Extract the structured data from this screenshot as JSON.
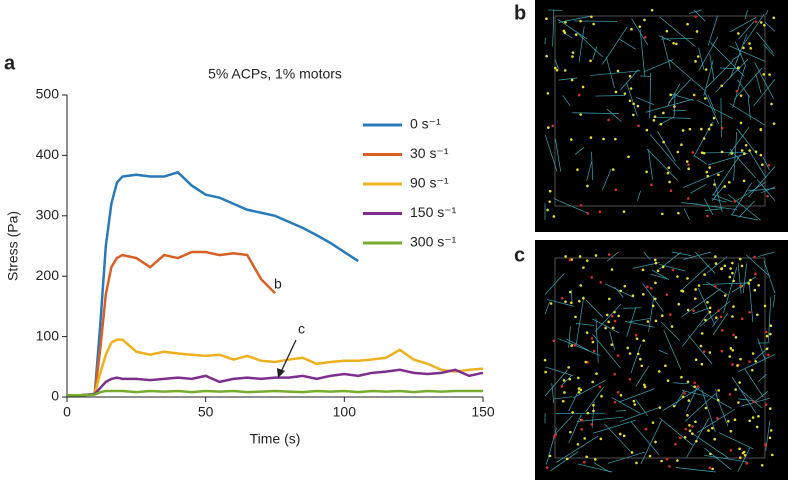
{
  "panel_labels": [
    "a",
    "b",
    "c"
  ],
  "chart_data": {
    "type": "line",
    "title": "5% ACPs, 1% motors",
    "x_label": "Time (s)",
    "y_label": "Stress (Pa)",
    "annotations": [
      "b",
      "c"
    ],
    "x": [
      0,
      5,
      10,
      12,
      14,
      16,
      18,
      20,
      25,
      30,
      35,
      40,
      45,
      50,
      55,
      60,
      65,
      70,
      75,
      80,
      85,
      90,
      95,
      100,
      105,
      110,
      115,
      120,
      125,
      130,
      135,
      140,
      145,
      150
    ],
    "series": [
      {
        "name": "0 s⁻¹",
        "color": "#2a7ab9",
        "values": [
          3,
          3,
          5,
          120,
          250,
          320,
          355,
          365,
          368,
          365,
          365,
          372,
          350,
          335,
          330,
          320,
          310,
          305,
          300,
          290,
          280,
          268,
          255,
          240,
          225,
          null,
          null,
          null,
          null,
          null,
          null,
          null,
          null,
          null
        ]
      },
      {
        "name": "30 s⁻¹",
        "color": "#d95f26",
        "values": [
          3,
          3,
          5,
          80,
          170,
          215,
          230,
          235,
          230,
          215,
          235,
          230,
          240,
          240,
          235,
          238,
          235,
          195,
          172,
          null,
          null,
          null,
          null,
          null,
          null,
          null,
          null,
          null,
          null,
          null,
          null,
          null,
          null,
          null
        ]
      },
      {
        "name": "90 s⁻¹",
        "color": "#edb11f",
        "values": [
          3,
          3,
          5,
          40,
          70,
          90,
          95,
          95,
          75,
          70,
          75,
          72,
          70,
          68,
          70,
          62,
          68,
          60,
          58,
          62,
          65,
          55,
          58,
          60,
          60,
          62,
          65,
          78,
          62,
          55,
          45,
          42,
          45,
          47
        ]
      },
      {
        "name": "150 s⁻¹",
        "color": "#7e2f8e",
        "values": [
          3,
          3,
          5,
          15,
          25,
          30,
          32,
          30,
          30,
          28,
          30,
          32,
          30,
          35,
          25,
          30,
          32,
          30,
          32,
          32,
          35,
          30,
          35,
          38,
          35,
          40,
          42,
          45,
          40,
          38,
          40,
          45,
          35,
          40
        ]
      },
      {
        "name": "300 s⁻¹",
        "color": "#77ac30",
        "values": [
          3,
          3,
          4,
          8,
          10,
          10,
          10,
          10,
          8,
          10,
          9,
          10,
          8,
          10,
          9,
          10,
          8,
          9,
          10,
          9,
          8,
          10,
          9,
          10,
          8,
          10,
          9,
          10,
          8,
          10,
          9,
          10,
          10,
          10
        ]
      }
    ],
    "xlim": [
      0,
      150
    ],
    "ylim": [
      0,
      500
    ],
    "xticks": [
      0,
      50,
      100,
      150
    ],
    "yticks": [
      0,
      100,
      200,
      300,
      400,
      500
    ]
  }
}
